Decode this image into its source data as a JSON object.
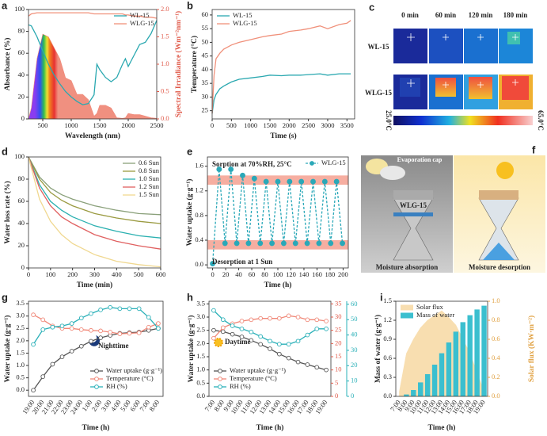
{
  "chart_data": [
    {
      "type": "line",
      "panel": "a",
      "xlabel": "Wavelength (nm)",
      "ylabel": "Absorbance (%)",
      "y2label": "Spectral Irradiance (Wm⁻²nm⁻¹)",
      "y2color": "#e05a4a",
      "x": [
        250,
        300,
        400,
        500,
        600,
        700,
        800,
        900,
        1000,
        1100,
        1200,
        1300,
        1400,
        1450,
        1500,
        1600,
        1700,
        1800,
        1900,
        1950,
        2000,
        2100,
        2200,
        2300,
        2400,
        2500
      ],
      "xlim": [
        250,
        2500
      ],
      "xticks": [
        500,
        1000,
        1500,
        2000,
        2500
      ],
      "ylim": [
        0,
        100
      ],
      "yticks": [
        0,
        20,
        40,
        60,
        80,
        100
      ],
      "y2lim": [
        0,
        2
      ],
      "y2ticks": [
        {
          "value": 0,
          "label": "0.0"
        },
        0.5,
        {
          "value": 1,
          "label": "1.0"
        },
        1.5,
        {
          "value": 2,
          "label": "2.0"
        }
      ],
      "legend": "upper right",
      "series": [
        {
          "type": "area",
          "axis": "y2",
          "color": "#f08878",
          "spectrum": true,
          "values": [
            0,
            0.2,
            1.1,
            1.55,
            1.5,
            1.3,
            1.1,
            0.75,
            0.7,
            0.45,
            0.45,
            0.35,
            0.05,
            0.1,
            0.25,
            0.25,
            0.2,
            0.02,
            0.01,
            0.02,
            0.1,
            0.08,
            0.08,
            0.05,
            0.02,
            0.01
          ]
        },
        {
          "name": "WL-15",
          "color": "#2aa8b0",
          "values": [
            86,
            85,
            75,
            62,
            50,
            40,
            32,
            25,
            20,
            16,
            13,
            14,
            22,
            50,
            45,
            38,
            34,
            38,
            50,
            55,
            48,
            58,
            68,
            70,
            78,
            90
          ]
        },
        {
          "name": "WLG-15",
          "color": "#f0907a",
          "values": [
            94,
            96,
            97,
            97,
            97,
            97,
            97,
            97,
            97,
            97,
            97,
            97,
            96,
            96,
            96,
            96,
            96,
            96,
            96,
            95,
            95,
            94,
            94,
            93,
            93,
            92
          ]
        }
      ]
    },
    {
      "type": "line",
      "panel": "b",
      "xlabel": "Time (s)",
      "ylabel": "Temperature (°C)",
      "x": [
        0,
        50,
        100,
        200,
        300,
        500,
        700,
        1000,
        1300,
        1500,
        1800,
        2000,
        2300,
        2500,
        2800,
        3000,
        3300,
        3500,
        3600
      ],
      "xlim": [
        0,
        3700
      ],
      "xticks": [
        0,
        500,
        1000,
        1500,
        2000,
        2500,
        3000,
        3500
      ],
      "ylim": [
        22,
        62
      ],
      "yticks": [
        25,
        30,
        35,
        40,
        45,
        50,
        55,
        60
      ],
      "legend": "upper left",
      "series": [
        {
          "name": "WL-15",
          "color": "#2aa8b0",
          "values": [
            24,
            29,
            31,
            33,
            34,
            35.5,
            36.5,
            37,
            37.5,
            38,
            37.8,
            38,
            38,
            38.2,
            38.5,
            38,
            38.5,
            38.5,
            38.5
          ]
        },
        {
          "name": "WLG-15",
          "color": "#f0907a",
          "values": [
            24,
            38,
            44,
            46,
            47.5,
            49,
            50,
            51,
            52,
            52.5,
            53,
            54,
            54.5,
            55,
            56,
            55,
            56.5,
            57,
            58
          ]
        }
      ]
    },
    {
      "type": "image",
      "panel": "c",
      "columns": [
        "0 min",
        "60 min",
        "120 min",
        "180 min"
      ],
      "rows": [
        "WL-15",
        "WLG-15"
      ],
      "colorbar_labels": [
        "25.0°C",
        "65.0°C"
      ]
    },
    {
      "type": "line",
      "panel": "d",
      "xlabel": "Time (min)",
      "ylabel": "Water loss rate (%)",
      "x": [
        0,
        50,
        100,
        150,
        200,
        300,
        400,
        500,
        600
      ],
      "xlim": [
        0,
        600
      ],
      "xticks": [
        0,
        100,
        200,
        300,
        400,
        500,
        600
      ],
      "ylim": [
        0,
        100
      ],
      "yticks": [
        0,
        20,
        40,
        60,
        80,
        100
      ],
      "legend": "upper right",
      "series": [
        {
          "name": "0.6 Sun",
          "color": "#8aa07a",
          "values": [
            100,
            82,
            72,
            66,
            62,
            56,
            52,
            49,
            48
          ]
        },
        {
          "name": "0.8 Sun",
          "color": "#9a9a40",
          "values": [
            100,
            80,
            68,
            61,
            56,
            49,
            45,
            42,
            40
          ]
        },
        {
          "name": "1.0 Sun",
          "color": "#2ab0b0",
          "values": [
            100,
            75,
            60,
            52,
            46,
            38,
            33,
            29,
            27
          ]
        },
        {
          "name": "1.2 Sun",
          "color": "#e06060",
          "values": [
            100,
            72,
            56,
            46,
            40,
            30,
            24,
            20,
            17
          ]
        },
        {
          "name": "1.5 Sun",
          "color": "#f0d890",
          "values": [
            100,
            62,
            42,
            30,
            22,
            12,
            6,
            3,
            1
          ]
        }
      ]
    },
    {
      "type": "line",
      "panel": "e",
      "xlabel": "Time (h)",
      "ylabel": "Water uptake (g·g⁻¹)",
      "annotations": [
        "Sorption at 70%RH, 25°C",
        "Desorption at 1 Sun"
      ],
      "x": [
        0,
        10,
        19,
        28,
        37,
        46,
        55,
        64,
        73,
        82,
        91,
        100,
        109,
        118,
        127,
        136,
        145,
        154,
        163,
        172,
        181,
        190,
        199
      ],
      "xlim": [
        -8,
        208
      ],
      "xticks": [
        0,
        20,
        40,
        60,
        80,
        100,
        120,
        140,
        160,
        180,
        200
      ],
      "ylim": [
        -0.05,
        1.75
      ],
      "yticks": [
        {
          "value": 0,
          "label": "0.0"
        },
        0.4,
        0.8,
        1.2,
        1.6
      ],
      "bands": [
        [
          1.3,
          1.45
        ],
        [
          0.25,
          0.4
        ]
      ],
      "band_color": "#f4a090",
      "legend": "upper right",
      "series": [
        {
          "name": "WLG-15",
          "color": "#2aa8b8",
          "marker": "filled",
          "dashed": true,
          "values": [
            0.02,
            1.55,
            0.35,
            1.55,
            0.35,
            1.45,
            0.35,
            1.4,
            0.35,
            1.35,
            0.35,
            1.35,
            0.35,
            1.35,
            0.35,
            1.35,
            0.35,
            1.35,
            0.35,
            1.35,
            0.35,
            1.35,
            0.35
          ]
        }
      ]
    },
    {
      "type": "image",
      "panel": "f",
      "labels": [
        "Evaporation cap",
        "WLG-15",
        "Moisture absorption",
        "Moisture desorption"
      ]
    },
    {
      "type": "line",
      "panel": "g",
      "xlabel": "Time (h)",
      "ylabel": "Water uptake (g·g⁻¹)",
      "annotations": [
        "Nighttime"
      ],
      "categories": [
        "19:00",
        "20:00",
        "21:00",
        "22:00",
        "23:00",
        "24:00",
        "1:00",
        "2:00",
        "3:00",
        "4:00",
        "5:00",
        "6:00",
        "7:00",
        "8:00"
      ],
      "ylim": [
        -0.25,
        3.6
      ],
      "yticks": [
        {
          "value": 0,
          "label": "0.0"
        },
        0.5,
        {
          "value": 1,
          "label": "1.0"
        },
        1.5,
        {
          "value": 2,
          "label": "2.0"
        },
        2.5,
        {
          "value": 3,
          "label": "3.0"
        },
        3.5
      ],
      "legend": "lower right",
      "series": [
        {
          "name": "Water uptake (g·g⁻¹)",
          "color": "#555555",
          "marker": "open",
          "values": [
            0,
            0.55,
            1.05,
            1.35,
            1.58,
            1.78,
            1.98,
            2.12,
            2.22,
            2.3,
            2.33,
            2.35,
            2.42,
            2.5
          ]
        },
        {
          "name": "Temperature (°C)",
          "color": "#f08878",
          "marker": "open",
          "values": [
            3.05,
            2.85,
            2.6,
            2.5,
            2.5,
            2.45,
            2.42,
            2.4,
            2.35,
            2.28,
            2.3,
            2.32,
            2.55,
            2.7
          ]
        },
        {
          "name": "RH (%)",
          "color": "#2ab0b8",
          "marker": "open",
          "values": [
            1.85,
            2.45,
            2.55,
            2.6,
            2.7,
            2.92,
            3.1,
            3.25,
            3.35,
            3.3,
            3.3,
            3.3,
            2.95,
            2.5
          ]
        }
      ]
    },
    {
      "type": "line",
      "panel": "h",
      "xlabel": "Time (h)",
      "ylabel": "Water uptake (g·g⁻¹)",
      "annotations": [
        "Daytime"
      ],
      "categories": [
        "7:00",
        "8:00",
        "9:00",
        "10:00",
        "11:00",
        "12:00",
        "13:00",
        "14:00",
        "15:00",
        "16:00",
        "17:00",
        "18:00",
        "19:00"
      ],
      "ylim": [
        0,
        3.6
      ],
      "yticks": [
        {
          "value": 0,
          "label": "0.0"
        },
        0.5,
        {
          "value": 1,
          "label": "1.0"
        },
        1.5,
        {
          "value": 2,
          "label": "2.0"
        },
        2.5,
        {
          "value": 3,
          "label": "3.0"
        },
        3.5
      ],
      "y2lim": [
        0,
        36
      ],
      "y2ticks": [
        0,
        5,
        10,
        15,
        20,
        25,
        30,
        35
      ],
      "y2color": "#e05a4a",
      "y3lim": [
        0,
        62
      ],
      "y3ticks": [
        0,
        10,
        20,
        30,
        40,
        50,
        60
      ],
      "y3color": "#2ab0b8",
      "legend": "lower left",
      "series": [
        {
          "name": "Water uptake (g·g⁻¹)",
          "color": "#555555",
          "marker": "open",
          "values": [
            2.5,
            2.45,
            2.35,
            2.25,
            2.12,
            1.97,
            1.8,
            1.6,
            1.45,
            1.3,
            1.2,
            1.1,
            1.0
          ]
        },
        {
          "name": "Temperature (°C)",
          "color": "#f08878",
          "marker": "open",
          "axis": "y2",
          "values": [
            22,
            26,
            27.5,
            28.5,
            29,
            29.5,
            29.5,
            29.5,
            30.5,
            30,
            29,
            29,
            28.5
          ]
        },
        {
          "name": "RH (%)",
          "color": "#2ab0b8",
          "marker": "open",
          "axis": "y3",
          "values": [
            56,
            50,
            46,
            44,
            42,
            39,
            36,
            34,
            34,
            36,
            40,
            44,
            44
          ]
        }
      ]
    },
    {
      "type": "bar",
      "panel": "i",
      "xlabel": "Time (h)",
      "ylabel": "Mass of water (g·g⁻¹)",
      "y2label": "Solar flux (KW·m⁻²)",
      "y2color": "#e0a040",
      "categories": [
        "7:00",
        "8:00",
        "9:00",
        "10:00",
        "11:00",
        "12:00",
        "13:00",
        "14:00",
        "15:00",
        "16:00",
        "17:00",
        "18:00",
        "19:00"
      ],
      "ylim": [
        0,
        1.5
      ],
      "yticks": [
        {
          "value": 0,
          "label": "0.0"
        },
        0.3,
        0.6,
        0.9,
        1.2,
        1.5
      ],
      "y2lim": [
        0,
        1
      ],
      "y2ticks": [
        {
          "value": 0,
          "label": "0.0"
        },
        0.2,
        0.4,
        0.6,
        0.8,
        {
          "value": 1,
          "label": "1.0"
        }
      ],
      "legend": "upper left",
      "series": [
        {
          "name": "Solar flux",
          "type": "area",
          "axis": "y2",
          "color": "#f8deb0",
          "values": [
            0.05,
            0.45,
            0.6,
            0.72,
            0.8,
            0.85,
            0.9,
            0.83,
            0.75,
            0.6,
            0.45,
            0.25,
            0.05
          ]
        },
        {
          "name": "Mass of water",
          "color": "#3bbfcf",
          "values": [
            0,
            0.03,
            0.1,
            0.22,
            0.35,
            0.5,
            0.68,
            0.85,
            1.02,
            1.17,
            1.28,
            1.37,
            1.43
          ]
        }
      ]
    }
  ]
}
